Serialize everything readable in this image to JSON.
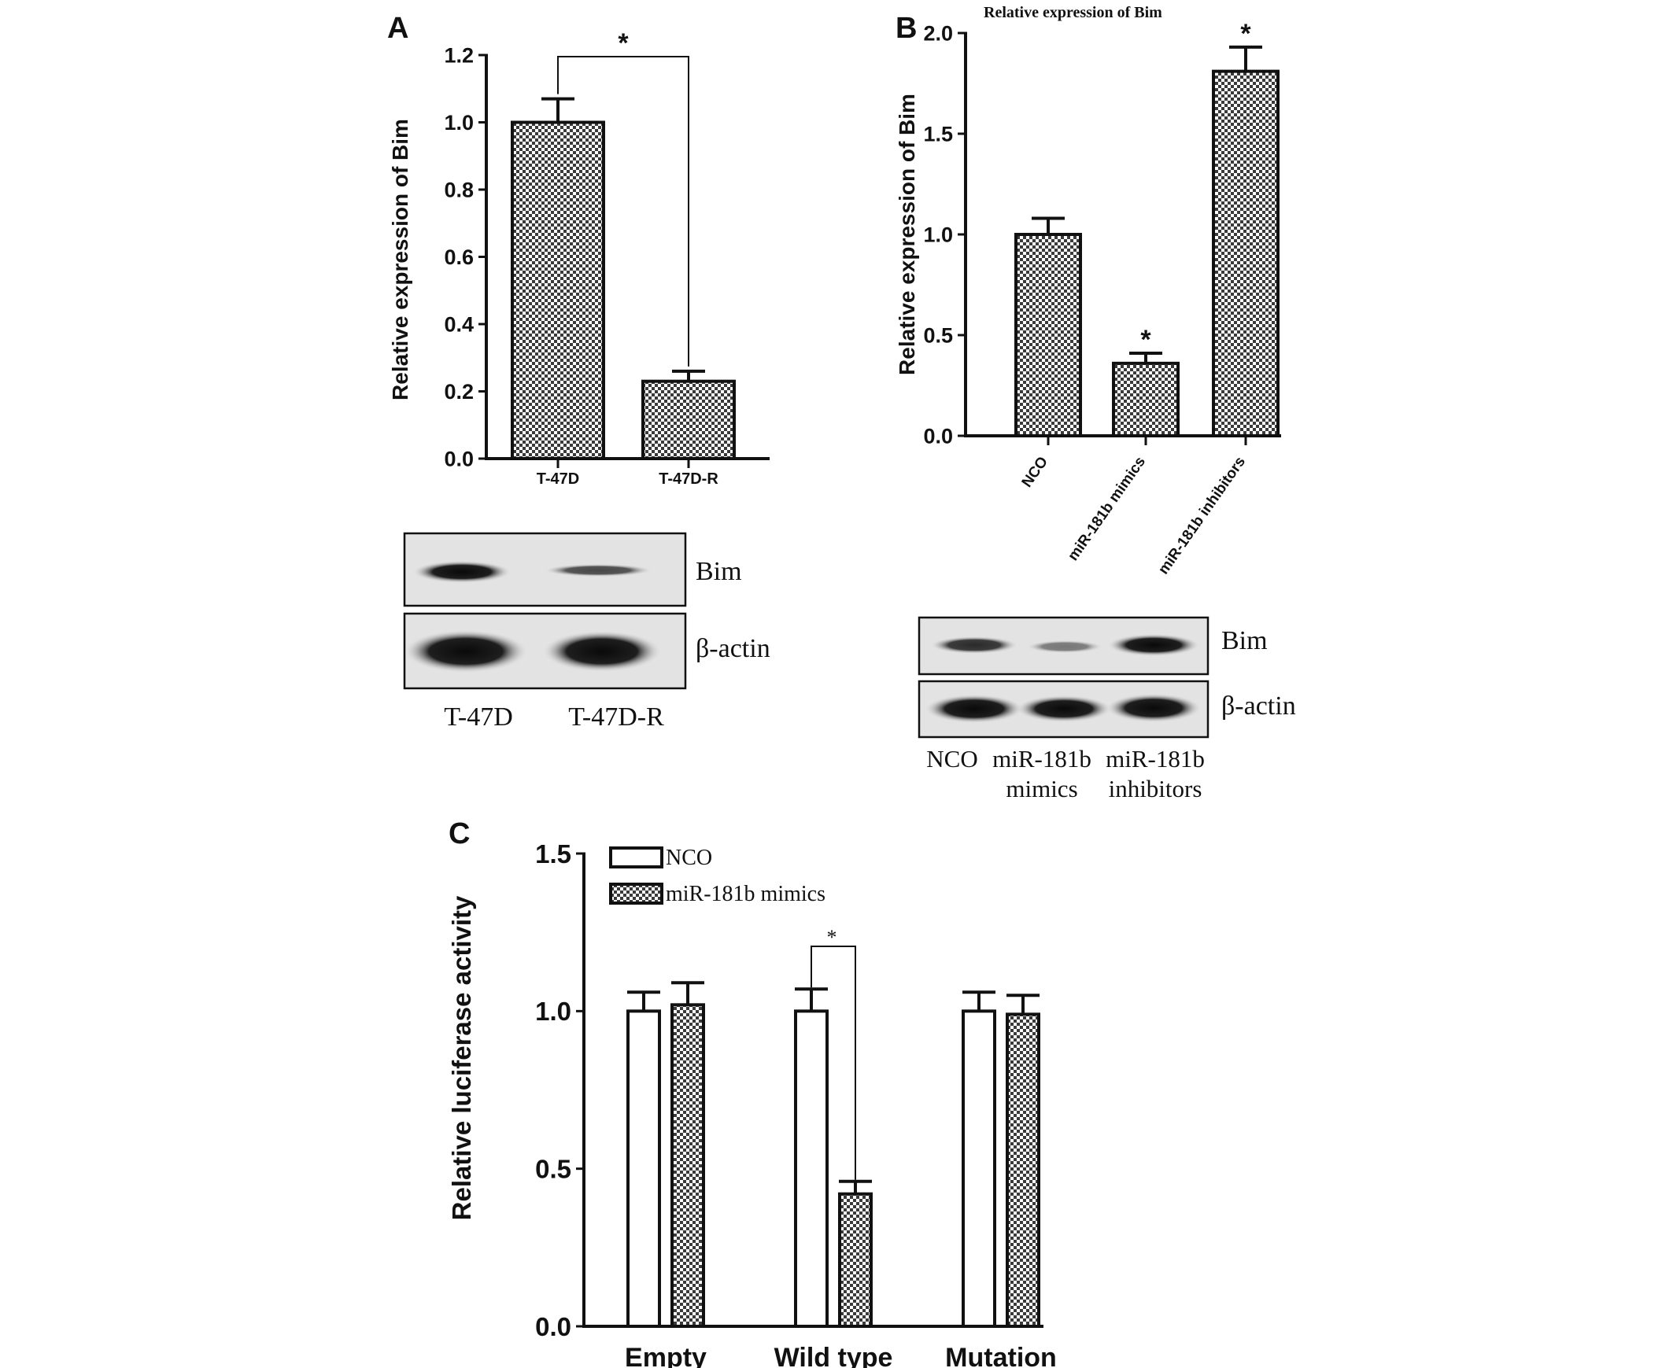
{
  "figure": {
    "panels": [
      {
        "id": "A",
        "label": "A",
        "chart_title": "",
        "ylabel": "Relative expression of Bim",
        "blot_rows": [
          "Bim",
          "β-actin"
        ],
        "blot_lanes": [
          [
            "T-47D"
          ],
          [
            "T-47D-R"
          ]
        ],
        "significance": "*"
      },
      {
        "id": "B",
        "label": "B",
        "chart_title": "Relative expression of Bim",
        "ylabel": "Relative expression of Bim",
        "blot_rows": [
          "Bim",
          "β-actin"
        ],
        "blot_lanes": [
          [
            "NCO"
          ],
          [
            "miR-181b",
            "mimics"
          ],
          [
            "miR-181b",
            "inhibitors"
          ]
        ],
        "significance": "*"
      },
      {
        "id": "C",
        "label": "C",
        "chart_title": "",
        "ylabel": "Relative luciferase activity",
        "significance": "*"
      }
    ]
  },
  "colors": {
    "ink": "#111111",
    "bar_pattern": "checkered",
    "nco_fill": "#ffffff"
  },
  "chart_data": [
    {
      "panel": "A",
      "type": "bar",
      "categories": [
        "T-47D",
        "T-47D-R"
      ],
      "values": [
        1.0,
        0.23
      ],
      "errors": [
        0.07,
        0.03
      ],
      "ylim": [
        0,
        1.2
      ],
      "yticks": [
        "0.0",
        "0.2",
        "0.4",
        "0.6",
        "0.8",
        "1.0",
        "1.2"
      ],
      "ytick_values": [
        0,
        0.2,
        0.4,
        0.6,
        0.8,
        1.0,
        1.2
      ],
      "title": "",
      "xlabel": "",
      "ylabel": "Relative expression of Bim",
      "significance": [
        {
          "between": [
            0,
            1
          ],
          "label": "*"
        }
      ]
    },
    {
      "panel": "B",
      "type": "bar",
      "categories": [
        "NCO",
        "miR-181b mimics",
        "miR-181b inhibitors"
      ],
      "values": [
        1.0,
        0.36,
        1.81
      ],
      "errors": [
        0.08,
        0.05,
        0.12
      ],
      "ylim": [
        0,
        2.0
      ],
      "yticks": [
        "0.0",
        "0.5",
        "1.0",
        "1.5",
        "2.0"
      ],
      "ytick_values": [
        0,
        0.5,
        1.0,
        1.5,
        2.0
      ],
      "title": "Relative expression of Bim",
      "xlabel": "",
      "ylabel": "Relative expression of Bim",
      "bar_marks": [
        "",
        "*",
        "*"
      ]
    },
    {
      "panel": "C",
      "type": "bar",
      "categories": [
        "Empty",
        "Wild type",
        "Mutation"
      ],
      "series": [
        {
          "name": "NCO",
          "values": [
            1.0,
            1.0,
            1.0
          ],
          "errors": [
            0.06,
            0.07,
            0.06
          ]
        },
        {
          "name": "miR-181b mimics",
          "values": [
            1.02,
            0.42,
            0.99
          ],
          "errors": [
            0.07,
            0.04,
            0.06
          ]
        }
      ],
      "ylim": [
        0,
        1.5
      ],
      "yticks": [
        "0.0",
        "0.5",
        "1.0",
        "1.5"
      ],
      "ytick_values": [
        0,
        0.5,
        1.0,
        1.5
      ],
      "title": "",
      "xlabel": "",
      "ylabel": "Relative luciferase activity",
      "legend": "top-left",
      "significance": [
        {
          "category": 1,
          "between_series": [
            0,
            1
          ],
          "label": "*"
        }
      ]
    }
  ]
}
